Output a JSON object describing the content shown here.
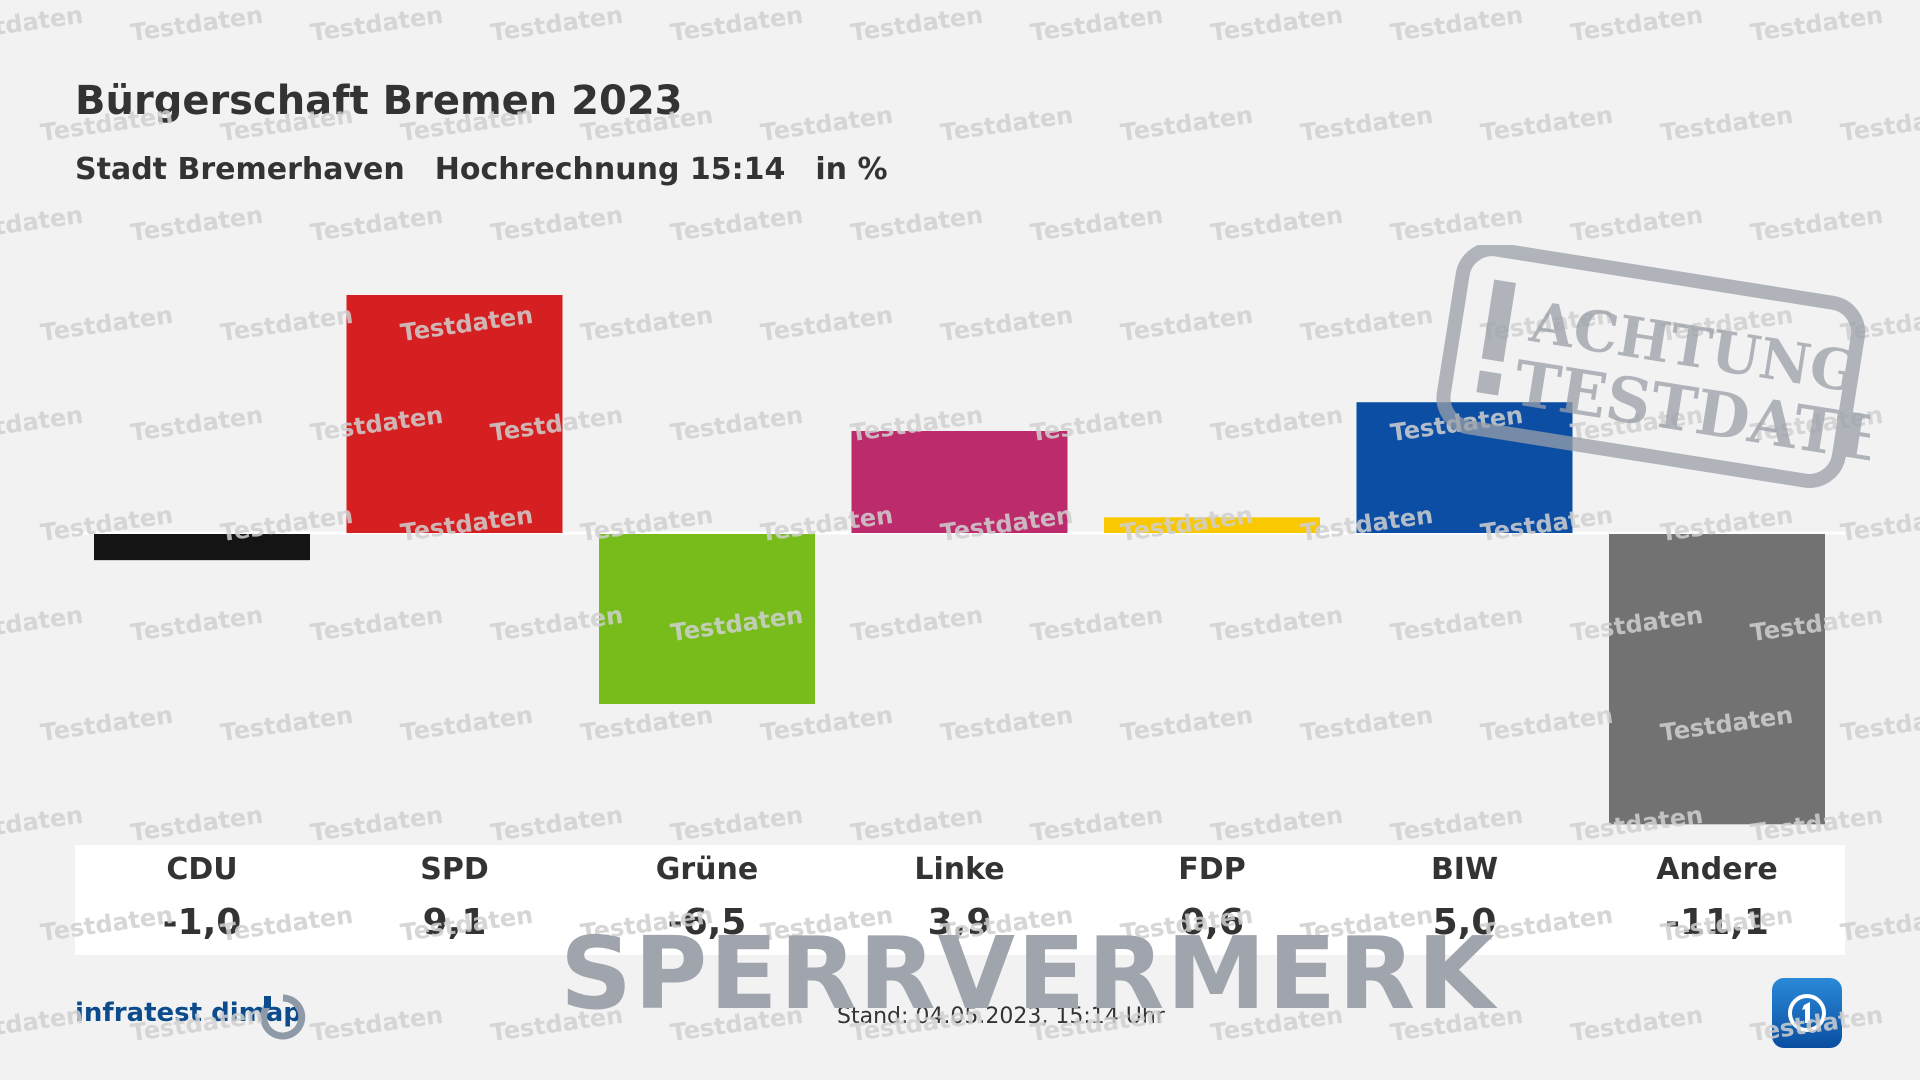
{
  "header": {
    "title": "Bürgerschaft Bremen 2023",
    "subtitle_region": "Stadt Bremerhaven",
    "subtitle_projection": "Hochrechnung 15:14",
    "subtitle_unit": "in %"
  },
  "chart_data": {
    "type": "bar",
    "categories": [
      "CDU",
      "SPD",
      "Grüne",
      "Linke",
      "FDP",
      "BIW",
      "Andere"
    ],
    "values": [
      -1.0,
      9.1,
      -6.5,
      3.9,
      0.6,
      5.0,
      -11.1
    ],
    "value_labels": [
      "-1,0",
      "9,1",
      "-6,5",
      "3,9",
      "0,6",
      "5,0",
      "-11,1"
    ],
    "colors": [
      "#141414",
      "#d61f20",
      "#78bc1b",
      "#bc2c6c",
      "#f9c800",
      "#0d4ea5",
      "#727272"
    ],
    "ylim": [
      -11.1,
      9.1
    ],
    "grid": false
  },
  "footer": {
    "stand": "Stand:  04.05.2023, 15:14 Uhr",
    "brand": "infratest dimap",
    "overlay": "SPERRVERMERK",
    "watermark": "Testdaten",
    "stamp_line1": "ACHTUNG",
    "stamp_line2": "TESTDATEN"
  }
}
